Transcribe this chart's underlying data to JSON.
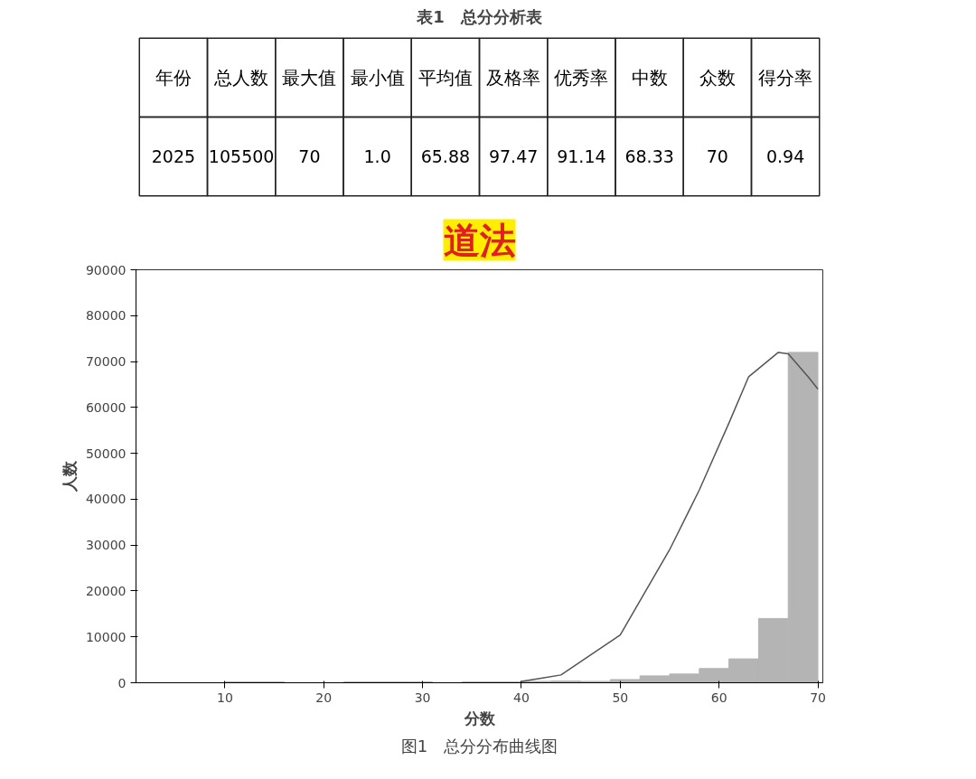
{
  "chart_data": [
    {
      "type": "other",
      "title": "表1　总分分析表",
      "categories": [
        "年份",
        "总人数",
        "最大值",
        "最小值",
        "平均值",
        "及格率",
        "优秀率",
        "中数",
        "众数",
        "得分率"
      ],
      "value_labels": [
        "2025",
        "105500",
        "70",
        "1.0",
        "65.88",
        "97.47",
        "91.14",
        "68.33",
        "70",
        "0.94"
      ]
    },
    {
      "type": "histogram",
      "title": "道法",
      "xlabel": "分数",
      "ylabel": "人数",
      "annotations": [
        "图1　总分分布曲线图"
      ],
      "bins": [
        1,
        4,
        7,
        10,
        13,
        16,
        19,
        22,
        25,
        28,
        31,
        34,
        37,
        40,
        43,
        46,
        49,
        52,
        55,
        58,
        61,
        64,
        67,
        70
      ],
      "values": [
        0,
        0,
        0,
        200,
        200,
        0,
        0,
        200,
        200,
        200,
        0,
        200,
        200,
        300,
        400,
        300,
        700,
        1500,
        1900,
        3100,
        5200,
        14000,
        72000
      ],
      "color": "#b4b4b4",
      "series": [
        {
          "type": "line",
          "color": "#555555",
          "x": [
            40,
            42,
            44,
            50,
            55,
            58,
            61,
            63,
            66,
            67,
            69,
            70
          ],
          "values": [
            300,
            1000,
            1700,
            10400,
            29000,
            42000,
            56600,
            66700,
            72000,
            71700,
            66700,
            64000
          ]
        }
      ],
      "xlim": [
        1,
        70.5
      ],
      "xticks": [
        10,
        20,
        30,
        40,
        50,
        60,
        70
      ],
      "ylim": [
        0,
        90000
      ],
      "yticks": [
        0,
        10000,
        20000,
        30000,
        40000,
        50000,
        60000,
        70000,
        80000,
        90000
      ],
      "grid": false
    }
  ]
}
